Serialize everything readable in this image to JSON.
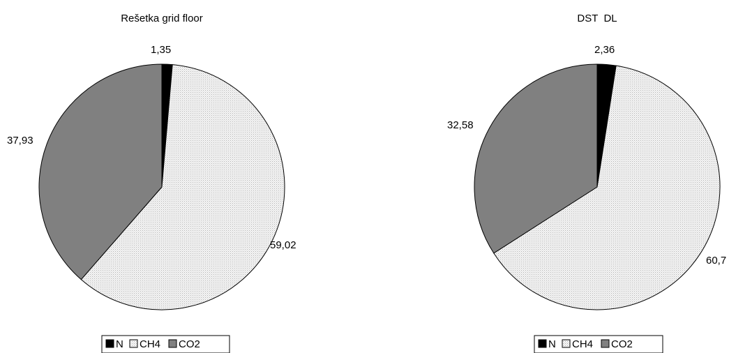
{
  "colors": {
    "N": "#000000",
    "CH4": "#f2f2f2",
    "CO2": "#808080",
    "outline": "#000000"
  },
  "chart_data": [
    {
      "type": "pie",
      "title": "Rešetka grid floor",
      "categories": [
        "N",
        "CH4",
        "CO2"
      ],
      "values": [
        1.35,
        59.02,
        37.93
      ],
      "value_labels": [
        "1,35",
        "59,02",
        "37,93"
      ],
      "legend": {
        "placement": "bottom",
        "entries": [
          "N",
          "CH4",
          "CO2"
        ]
      },
      "start_angle": "12 o'clock",
      "direction": "clockwise"
    },
    {
      "type": "pie",
      "title": "DST  DL",
      "categories": [
        "N",
        "CH4",
        "CO2"
      ],
      "values": [
        2.36,
        60.7,
        32.58
      ],
      "value_labels": [
        "2,36",
        "60,7",
        "32,58"
      ],
      "legend": {
        "placement": "bottom",
        "entries": [
          "N",
          "CH4",
          "CO2"
        ]
      },
      "start_angle": "12 o'clock",
      "direction": "clockwise"
    }
  ]
}
